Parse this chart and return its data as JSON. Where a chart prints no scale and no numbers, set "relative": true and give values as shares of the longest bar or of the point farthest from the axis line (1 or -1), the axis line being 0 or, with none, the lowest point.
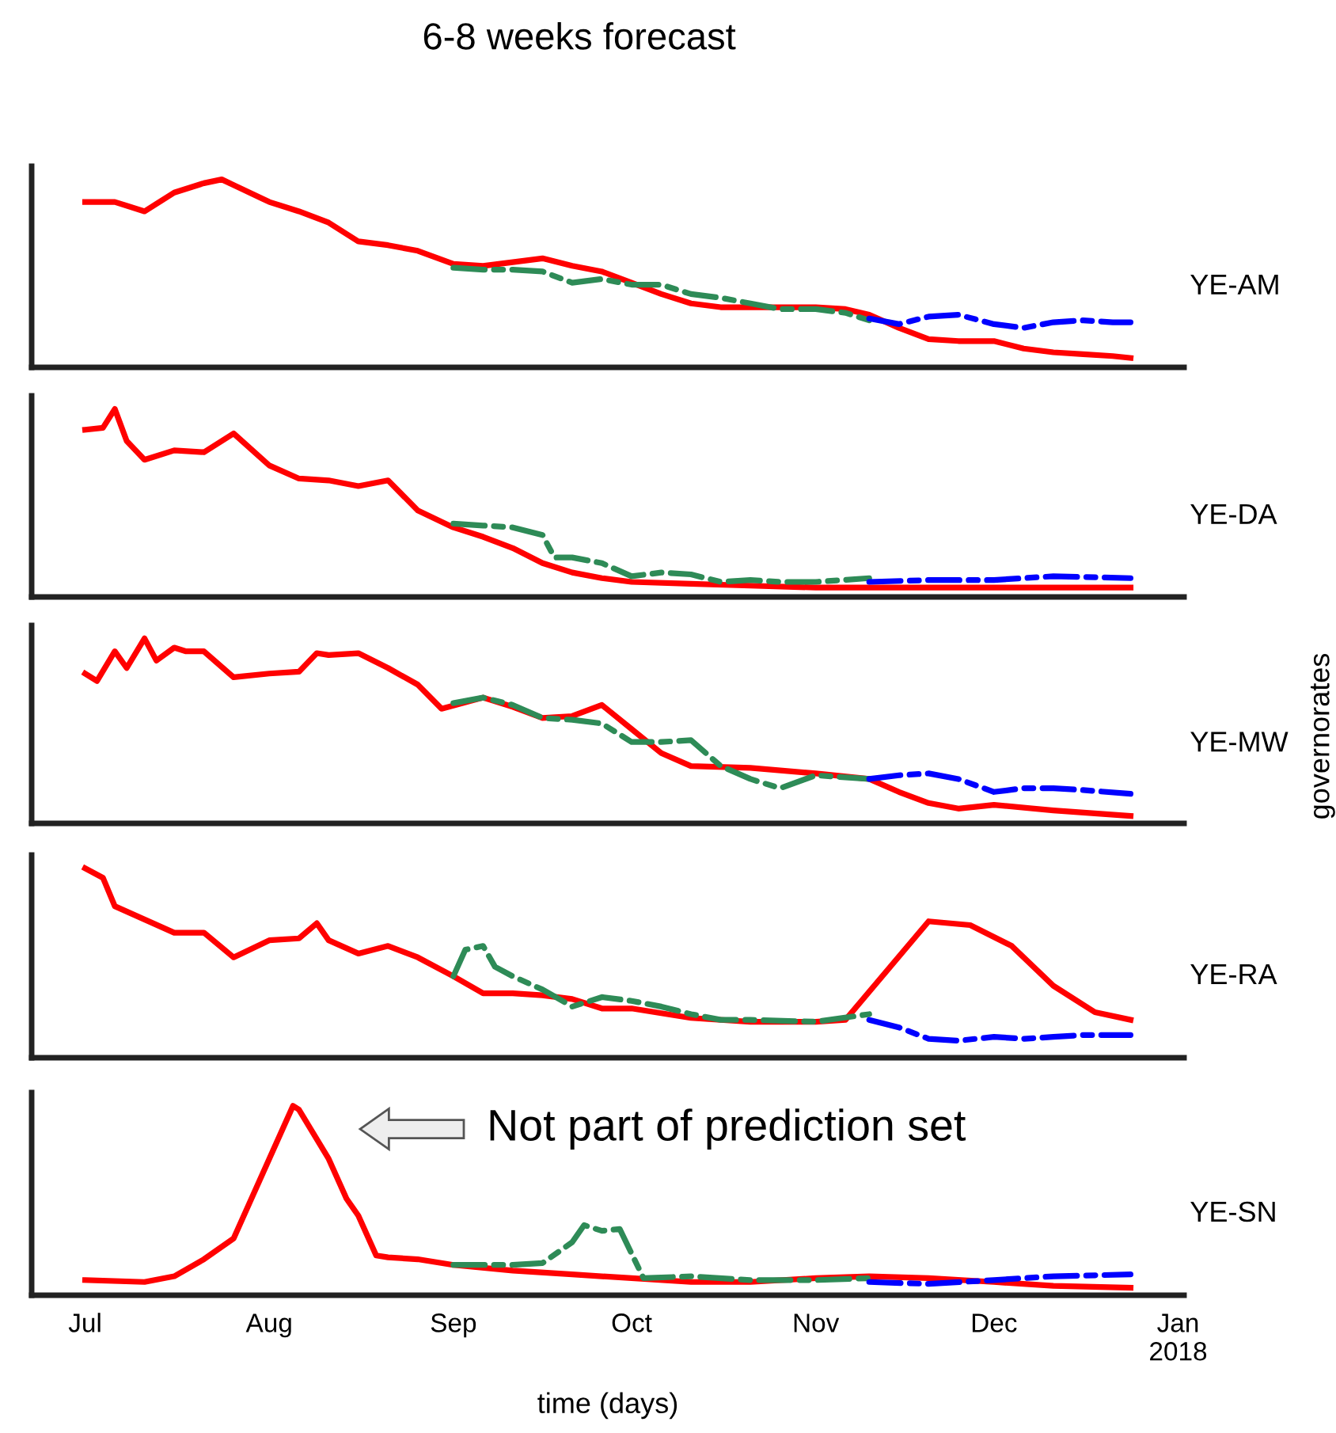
{
  "chart_data": [
    {
      "type": "line",
      "title": "6-8 weeks forecast",
      "ylabel": "YE-AM",
      "relative": true,
      "tick_labels": false,
      "xlim": [
        "2017-06-22",
        "2018-01-02"
      ],
      "series": [
        {
          "color": "#ff0000",
          "line_style": "solid",
          "x": [
            "2017-07-01",
            "2017-07-06",
            "2017-07-11",
            "2017-07-16",
            "2017-07-21",
            "2017-07-24",
            "2017-07-26",
            "2017-08-01",
            "2017-08-06",
            "2017-08-11",
            "2017-08-16",
            "2017-08-21",
            "2017-08-26",
            "2017-09-01",
            "2017-09-06",
            "2017-09-11",
            "2017-09-16",
            "2017-09-21",
            "2017-09-26",
            "2017-10-01",
            "2017-10-06",
            "2017-10-11",
            "2017-10-16",
            "2017-10-21",
            "2017-10-26",
            "2017-11-01",
            "2017-11-06",
            "2017-11-10",
            "2017-11-15",
            "2017-11-20",
            "2017-11-25",
            "2017-12-01",
            "2017-12-06",
            "2017-12-11",
            "2017-12-16",
            "2017-12-21",
            "2017-12-24"
          ],
          "values": [
            0.88,
            0.88,
            0.83,
            0.93,
            0.98,
            1.0,
            0.97,
            0.88,
            0.83,
            0.77,
            0.67,
            0.65,
            0.62,
            0.55,
            0.54,
            0.56,
            0.58,
            0.54,
            0.51,
            0.45,
            0.39,
            0.34,
            0.32,
            0.32,
            0.32,
            0.32,
            0.31,
            0.28,
            0.21,
            0.15,
            0.14,
            0.14,
            0.1,
            0.08,
            0.07,
            0.06,
            0.05
          ]
        },
        {
          "color": "#2e8b57",
          "line_style": "dashed",
          "x": [
            "2017-09-01",
            "2017-09-06",
            "2017-09-11",
            "2017-09-16",
            "2017-09-21",
            "2017-09-26",
            "2017-10-01",
            "2017-10-06",
            "2017-10-11",
            "2017-10-16",
            "2017-10-21",
            "2017-10-26",
            "2017-11-01",
            "2017-11-06",
            "2017-11-10"
          ],
          "values": [
            0.53,
            0.52,
            0.52,
            0.51,
            0.45,
            0.47,
            0.44,
            0.44,
            0.39,
            0.37,
            0.34,
            0.31,
            0.31,
            0.29,
            0.25
          ]
        },
        {
          "color": "#0000ff",
          "line_style": "dashed",
          "x": [
            "2017-11-10",
            "2017-11-15",
            "2017-11-20",
            "2017-11-25",
            "2017-12-01",
            "2017-12-06",
            "2017-12-11",
            "2017-12-16",
            "2017-12-21",
            "2017-12-24"
          ],
          "values": [
            0.26,
            0.23,
            0.27,
            0.28,
            0.23,
            0.21,
            0.24,
            0.25,
            0.24,
            0.24
          ]
        }
      ]
    },
    {
      "type": "line",
      "ylabel": "YE-DA",
      "relative": true,
      "tick_labels": false,
      "xlim": [
        "2017-06-22",
        "2018-01-02"
      ],
      "series": [
        {
          "color": "#ff0000",
          "line_style": "solid",
          "x": [
            "2017-07-01",
            "2017-07-04",
            "2017-07-06",
            "2017-07-08",
            "2017-07-11",
            "2017-07-16",
            "2017-07-21",
            "2017-07-26",
            "2017-08-01",
            "2017-08-06",
            "2017-08-11",
            "2017-08-16",
            "2017-08-21",
            "2017-08-26",
            "2017-09-01",
            "2017-09-06",
            "2017-09-11",
            "2017-09-16",
            "2017-09-21",
            "2017-09-26",
            "2017-10-01",
            "2017-10-11",
            "2017-10-21",
            "2017-11-01",
            "2017-11-10",
            "2017-12-01",
            "2017-12-24"
          ],
          "values": [
            0.89,
            0.9,
            1.0,
            0.83,
            0.73,
            0.78,
            0.77,
            0.87,
            0.7,
            0.63,
            0.62,
            0.59,
            0.62,
            0.46,
            0.37,
            0.32,
            0.26,
            0.18,
            0.13,
            0.1,
            0.08,
            0.07,
            0.06,
            0.05,
            0.05,
            0.05,
            0.05
          ]
        },
        {
          "color": "#2e8b57",
          "line_style": "dashed",
          "x": [
            "2017-09-01",
            "2017-09-06",
            "2017-09-11",
            "2017-09-16",
            "2017-09-18",
            "2017-09-21",
            "2017-09-26",
            "2017-10-01",
            "2017-10-06",
            "2017-10-11",
            "2017-10-16",
            "2017-10-21",
            "2017-10-26",
            "2017-11-01",
            "2017-11-10"
          ],
          "values": [
            0.39,
            0.38,
            0.37,
            0.33,
            0.21,
            0.21,
            0.18,
            0.11,
            0.13,
            0.12,
            0.08,
            0.09,
            0.08,
            0.08,
            0.1
          ]
        },
        {
          "color": "#0000ff",
          "line_style": "dashed",
          "x": [
            "2017-11-10",
            "2017-11-20",
            "2017-12-01",
            "2017-12-11",
            "2017-12-24"
          ],
          "values": [
            0.08,
            0.09,
            0.09,
            0.11,
            0.1
          ]
        }
      ]
    },
    {
      "type": "line",
      "ylabel": "YE-MW",
      "y2label": "governorates",
      "relative": true,
      "tick_labels": false,
      "xlim": [
        "2017-06-22",
        "2018-01-02"
      ],
      "series": [
        {
          "color": "#ff0000",
          "line_style": "solid",
          "x": [
            "2017-07-01",
            "2017-07-03",
            "2017-07-06",
            "2017-07-08",
            "2017-07-11",
            "2017-07-13",
            "2017-07-16",
            "2017-07-18",
            "2017-07-21",
            "2017-07-26",
            "2017-08-01",
            "2017-08-06",
            "2017-08-09",
            "2017-08-11",
            "2017-08-16",
            "2017-08-21",
            "2017-08-26",
            "2017-08-30",
            "2017-09-06",
            "2017-09-11",
            "2017-09-16",
            "2017-09-21",
            "2017-09-26",
            "2017-10-01",
            "2017-10-06",
            "2017-10-11",
            "2017-10-21",
            "2017-11-01",
            "2017-11-10",
            "2017-11-15",
            "2017-11-20",
            "2017-11-25",
            "2017-12-01",
            "2017-12-11",
            "2017-12-24"
          ],
          "values": [
            0.81,
            0.77,
            0.93,
            0.84,
            1.0,
            0.88,
            0.95,
            0.93,
            0.93,
            0.79,
            0.81,
            0.82,
            0.92,
            0.91,
            0.92,
            0.84,
            0.75,
            0.62,
            0.68,
            0.63,
            0.57,
            0.58,
            0.64,
            0.51,
            0.38,
            0.31,
            0.3,
            0.27,
            0.24,
            0.17,
            0.11,
            0.08,
            0.1,
            0.07,
            0.04
          ]
        },
        {
          "color": "#2e8b57",
          "line_style": "dashed",
          "x": [
            "2017-09-01",
            "2017-09-06",
            "2017-09-11",
            "2017-09-16",
            "2017-09-21",
            "2017-09-26",
            "2017-10-01",
            "2017-10-06",
            "2017-10-11",
            "2017-10-16",
            "2017-10-21",
            "2017-10-26",
            "2017-11-01",
            "2017-11-10"
          ],
          "values": [
            0.65,
            0.68,
            0.64,
            0.57,
            0.56,
            0.54,
            0.44,
            0.44,
            0.45,
            0.31,
            0.24,
            0.19,
            0.26,
            0.24
          ]
        },
        {
          "color": "#0000ff",
          "line_style": "dashed",
          "x": [
            "2017-11-10",
            "2017-11-15",
            "2017-11-20",
            "2017-11-25",
            "2017-12-01",
            "2017-12-06",
            "2017-12-11",
            "2017-12-16",
            "2017-12-24"
          ],
          "values": [
            0.24,
            0.26,
            0.27,
            0.24,
            0.17,
            0.19,
            0.19,
            0.18,
            0.16
          ]
        }
      ]
    },
    {
      "type": "line",
      "ylabel": "YE-RA",
      "relative": true,
      "tick_labels": false,
      "xlim": [
        "2017-06-22",
        "2018-01-02"
      ],
      "series": [
        {
          "color": "#ff0000",
          "line_style": "solid",
          "x": [
            "2017-07-01",
            "2017-07-04",
            "2017-07-06",
            "2017-07-11",
            "2017-07-16",
            "2017-07-21",
            "2017-07-26",
            "2017-08-01",
            "2017-08-06",
            "2017-08-09",
            "2017-08-11",
            "2017-08-16",
            "2017-08-21",
            "2017-08-26",
            "2017-09-01",
            "2017-09-06",
            "2017-09-11",
            "2017-09-16",
            "2017-09-21",
            "2017-09-26",
            "2017-10-01",
            "2017-10-11",
            "2017-10-21",
            "2017-11-01",
            "2017-11-06",
            "2017-11-20",
            "2017-11-27",
            "2017-12-04",
            "2017-12-11",
            "2017-12-18",
            "2017-12-24"
          ],
          "values": [
            1.0,
            0.95,
            0.8,
            0.73,
            0.66,
            0.66,
            0.53,
            0.62,
            0.63,
            0.71,
            0.62,
            0.55,
            0.59,
            0.53,
            0.43,
            0.34,
            0.34,
            0.33,
            0.31,
            0.26,
            0.26,
            0.21,
            0.19,
            0.19,
            0.2,
            0.72,
            0.7,
            0.59,
            0.38,
            0.24,
            0.2
          ]
        },
        {
          "color": "#2e8b57",
          "line_style": "dashed",
          "x": [
            "2017-09-01",
            "2017-09-03",
            "2017-09-06",
            "2017-09-08",
            "2017-09-11",
            "2017-09-16",
            "2017-09-21",
            "2017-09-26",
            "2017-10-01",
            "2017-10-06",
            "2017-10-11",
            "2017-10-16",
            "2017-10-21",
            "2017-11-01",
            "2017-11-10"
          ],
          "values": [
            0.43,
            0.57,
            0.59,
            0.48,
            0.43,
            0.36,
            0.27,
            0.32,
            0.3,
            0.27,
            0.23,
            0.2,
            0.2,
            0.19,
            0.23
          ]
        },
        {
          "color": "#0000ff",
          "line_style": "dashed",
          "x": [
            "2017-11-10",
            "2017-11-15",
            "2017-11-20",
            "2017-11-25",
            "2017-12-01",
            "2017-12-06",
            "2017-12-11",
            "2017-12-16",
            "2017-12-24"
          ],
          "values": [
            0.2,
            0.16,
            0.1,
            0.09,
            0.11,
            0.1,
            0.11,
            0.12,
            0.12
          ]
        }
      ]
    },
    {
      "type": "line",
      "ylabel": "YE-SN",
      "xlabel": "time (days)",
      "relative": true,
      "tick_labels": "x",
      "xlim": [
        "2017-06-22",
        "2018-01-02"
      ],
      "xticks": [
        {
          "value": "2017-07-01",
          "label": "Jul"
        },
        {
          "value": "2017-08-01",
          "label": "Aug"
        },
        {
          "value": "2017-09-01",
          "label": "Sep"
        },
        {
          "value": "2017-10-01",
          "label": "Oct"
        },
        {
          "value": "2017-11-01",
          "label": "Nov"
        },
        {
          "value": "2017-12-01",
          "label": "Dec"
        },
        {
          "value": "2018-01-01",
          "label": "Jan\n2018"
        }
      ],
      "annotations": [
        "Not part of prediction set"
      ],
      "series": [
        {
          "color": "#ff0000",
          "line_style": "solid",
          "x": [
            "2017-07-01",
            "2017-07-11",
            "2017-07-16",
            "2017-07-21",
            "2017-07-26",
            "2017-08-01",
            "2017-08-05",
            "2017-08-06",
            "2017-08-11",
            "2017-08-14",
            "2017-08-16",
            "2017-08-19",
            "2017-08-21",
            "2017-08-26",
            "2017-09-01",
            "2017-09-11",
            "2017-09-21",
            "2017-10-01",
            "2017-10-11",
            "2017-10-21",
            "2017-11-01",
            "2017-11-10",
            "2017-11-20",
            "2017-12-01",
            "2017-12-11",
            "2017-12-24"
          ],
          "values": [
            0.08,
            0.07,
            0.1,
            0.19,
            0.3,
            0.72,
            1.0,
            0.98,
            0.72,
            0.51,
            0.42,
            0.21,
            0.2,
            0.19,
            0.16,
            0.13,
            0.11,
            0.09,
            0.07,
            0.07,
            0.09,
            0.1,
            0.09,
            0.07,
            0.05,
            0.04
          ]
        },
        {
          "color": "#2e8b57",
          "line_style": "dashed",
          "x": [
            "2017-09-01",
            "2017-09-11",
            "2017-09-16",
            "2017-09-21",
            "2017-09-23",
            "2017-09-26",
            "2017-09-29",
            "2017-10-03",
            "2017-10-11",
            "2017-10-21",
            "2017-11-01",
            "2017-11-10"
          ],
          "values": [
            0.16,
            0.16,
            0.17,
            0.28,
            0.37,
            0.34,
            0.35,
            0.09,
            0.1,
            0.08,
            0.08,
            0.09
          ]
        },
        {
          "color": "#0000ff",
          "line_style": "dashed",
          "x": [
            "2017-11-10",
            "2017-11-20",
            "2017-12-01",
            "2017-12-11",
            "2017-12-24"
          ],
          "values": [
            0.07,
            0.06,
            0.08,
            0.1,
            0.11
          ]
        }
      ]
    }
  ]
}
